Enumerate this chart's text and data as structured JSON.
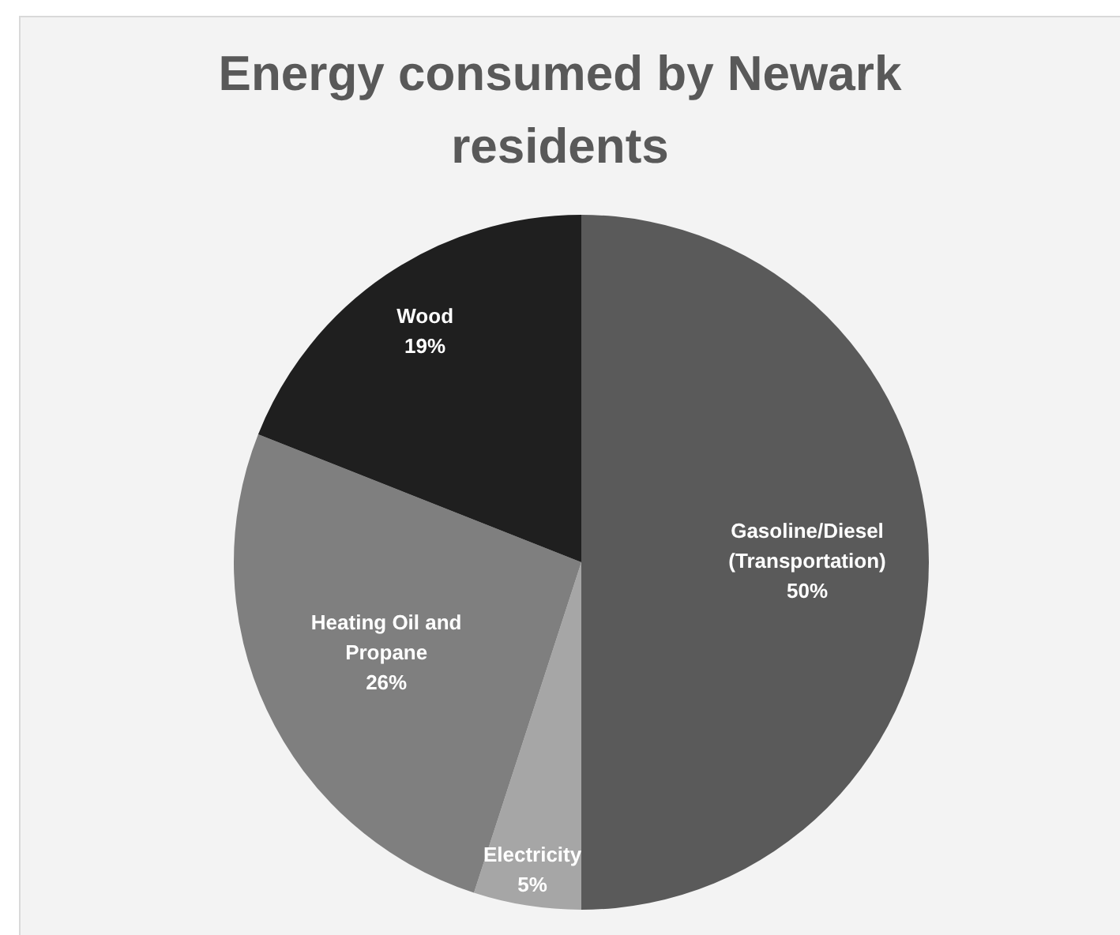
{
  "chart_data": {
    "type": "pie",
    "title": "Energy consumed by Newark residents",
    "categories": [
      "Gasoline/Diesel (Transportation)",
      "Electricity",
      "Heating Oil and Propane",
      "Wood"
    ],
    "values": [
      50,
      5,
      26,
      19
    ],
    "value_labels": [
      "50%",
      "5%",
      "26%",
      "19%"
    ],
    "colors": [
      "#5a5a5a",
      "#a6a6a6",
      "#7f7f7f",
      "#1f1f1f"
    ],
    "legend": false
  }
}
